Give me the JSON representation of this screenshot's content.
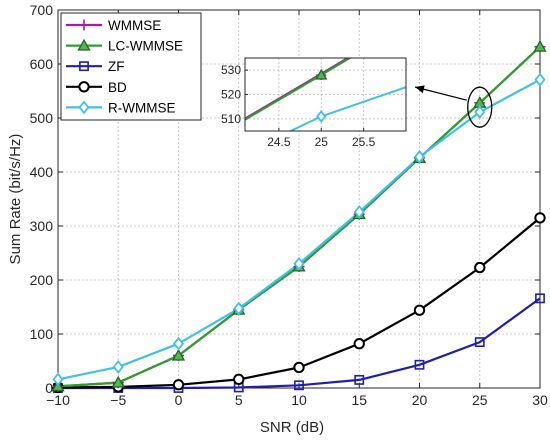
{
  "chart_data": {
    "type": "line",
    "title": "",
    "xlabel": "SNR (dB)",
    "ylabel": "Sum Rate (bit/s/Hz)",
    "xlim": [
      -10,
      30
    ],
    "ylim": [
      0,
      700
    ],
    "xticks": [
      -10,
      -5,
      0,
      5,
      10,
      15,
      20,
      25,
      30
    ],
    "yticks": [
      0,
      100,
      200,
      300,
      400,
      500,
      600,
      700
    ],
    "grid": true,
    "legend_position": "top-left",
    "x": [
      -10,
      -5,
      0,
      5,
      10,
      15,
      20,
      25,
      30
    ],
    "series": [
      {
        "name": "WMMSE",
        "color": "#a020a0",
        "marker": "plus",
        "values": [
          3,
          10,
          60,
          145,
          225,
          322,
          426,
          528,
          632
        ]
      },
      {
        "name": "LC-WMMSE",
        "color": "#2ca02c",
        "marker": "triangle",
        "values": [
          3,
          10,
          60,
          145,
          225,
          322,
          426,
          528,
          632
        ]
      },
      {
        "name": "ZF",
        "color": "#1f1fa8",
        "marker": "square",
        "values": [
          0,
          0,
          0,
          1,
          5,
          15,
          43,
          85,
          166
        ]
      },
      {
        "name": "BD",
        "color": "#000000",
        "marker": "circle",
        "values": [
          1,
          2,
          6,
          16,
          38,
          82,
          144,
          223,
          315
        ]
      },
      {
        "name": "R-WMMSE",
        "color": "#40c0e8",
        "marker": "diamond",
        "values": [
          16,
          39,
          82,
          147,
          230,
          326,
          428,
          511,
          571
        ]
      }
    ],
    "inset": {
      "xlim": [
        24.1,
        26
      ],
      "ylim": [
        505,
        535
      ],
      "xticks": [
        24.5,
        25,
        25.5
      ],
      "yticks": [
        510,
        520,
        530
      ],
      "series_lines": [
        {
          "name": "WMMSE",
          "x": [
            20,
            25,
            30
          ],
          "values": [
            426,
            528,
            632
          ]
        },
        {
          "name": "LC-WMMSE",
          "x": [
            20,
            25,
            30
          ],
          "values": [
            426,
            528,
            632
          ]
        },
        {
          "name": "R-WMMSE",
          "x": [
            20,
            25,
            30
          ],
          "values": [
            428,
            511,
            571
          ]
        }
      ]
    }
  }
}
